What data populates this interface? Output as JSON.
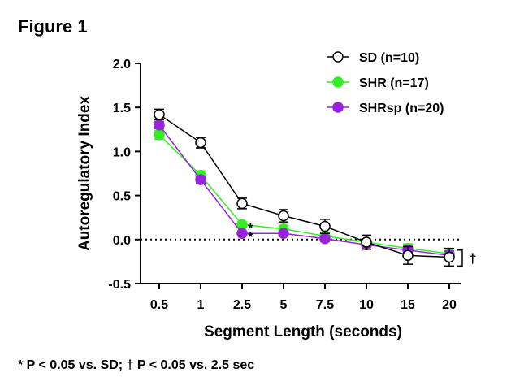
{
  "figure_label": "Figure 1",
  "footnote": "* P < 0.05 vs. SD; † P < 0.05 vs. 2.5 sec",
  "chart_data": {
    "type": "line",
    "xlabel": "Segment Length (seconds)",
    "ylabel": "Autoregulatory Index",
    "categories": [
      "0.5",
      "1",
      "2.5",
      "5",
      "7.5",
      "10",
      "15",
      "20"
    ],
    "ylim": [
      -0.5,
      2.0
    ],
    "yticks": [
      "-0.5",
      "0.0",
      "0.5",
      "1.0",
      "1.5",
      "2.0"
    ],
    "reference_line": 0.0,
    "legend_position": "top-right",
    "series": [
      {
        "name": "SD (n=10)",
        "color": "#000000",
        "marker": "open-circle",
        "values": [
          1.42,
          1.1,
          0.41,
          0.27,
          0.15,
          -0.03,
          -0.18,
          -0.2
        ],
        "errors": [
          0.06,
          0.06,
          0.06,
          0.07,
          0.08,
          0.08,
          0.1,
          0.1
        ]
      },
      {
        "name": "SHR (n=17)",
        "color": "#33ee22",
        "marker": "filled-circle",
        "values": [
          1.19,
          0.73,
          0.17,
          0.12,
          0.04,
          -0.03,
          -0.1,
          -0.16
        ],
        "errors": [
          0.05,
          0.05,
          0.03,
          0.04,
          0.04,
          0.04,
          0.05,
          0.05
        ]
      },
      {
        "name": "SHRsp (n=20)",
        "color": "#9922dd",
        "marker": "filled-circle",
        "values": [
          1.3,
          0.68,
          0.07,
          0.07,
          0.01,
          -0.06,
          -0.12,
          -0.18
        ],
        "errors": [
          0.04,
          0.04,
          0.02,
          0.03,
          0.03,
          0.05,
          0.04,
          0.05
        ]
      }
    ],
    "annotations": [
      {
        "text": "*",
        "category": "2.5",
        "y": 0.17
      },
      {
        "text": "*",
        "category": "2.5",
        "y": 0.07
      },
      {
        "text": "†",
        "category": "20",
        "y_range": [
          -0.12,
          -0.3
        ]
      }
    ]
  }
}
